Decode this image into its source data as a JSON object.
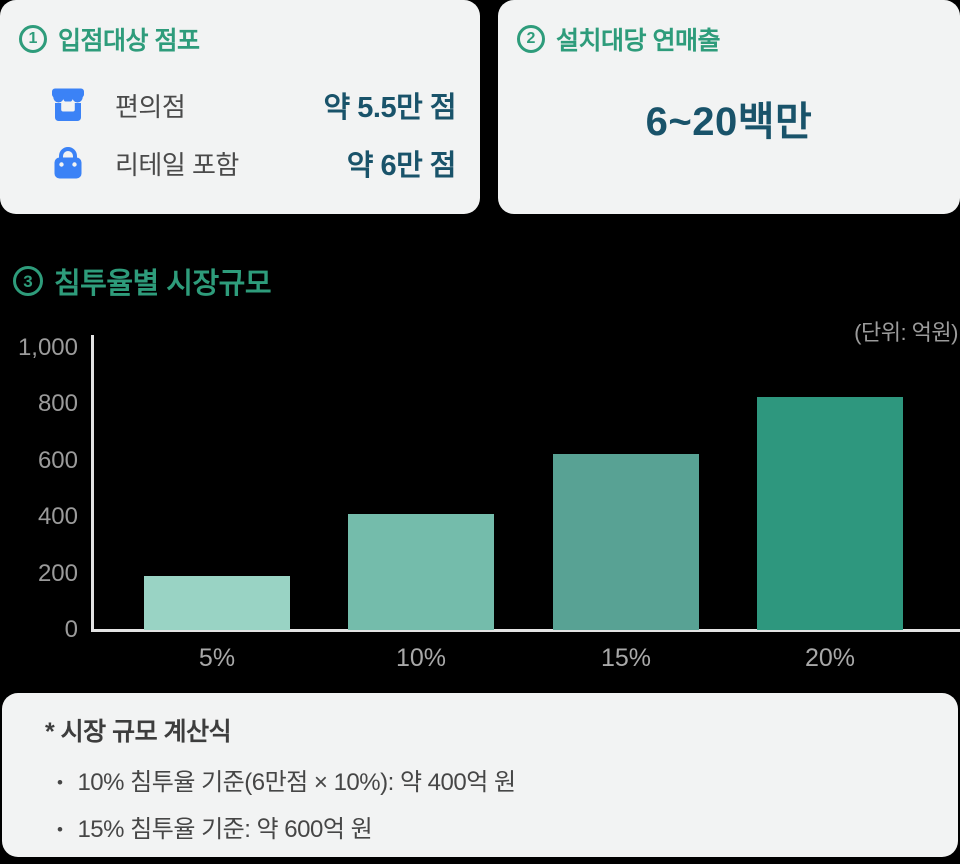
{
  "colors": {
    "page_bg": "#000000",
    "card_bg": "#F2F3F3",
    "green": "#2E9C7B",
    "dark_teal": "#19536A",
    "icon_blue": "#3B82F6",
    "label_gray": "#4A4A4A",
    "tick_gray": "#9B9B9B",
    "xlabel_gray": "#A8A8A8",
    "axis_line": "#E3E3E3",
    "footnote_title": "#3D3D3D",
    "footnote_text": "#464646"
  },
  "cards": {
    "stores": {
      "number": "1",
      "title": "입점대상 점포",
      "rows": [
        {
          "icon": "storefront-icon",
          "label": "편의점",
          "value": "약 5.5만 점"
        },
        {
          "icon": "shopping-bag-icon",
          "label": "리테일 포함",
          "value": "약 6만 점"
        }
      ]
    },
    "revenue": {
      "number": "2",
      "title": "설치대당 연매출",
      "value": "6~20백만"
    }
  },
  "chart_section": {
    "number": "3",
    "title": "침투율별 시장규모",
    "unit_label": "(단위: 억원)"
  },
  "chart_data": {
    "type": "bar",
    "title": "침투율별 시장규모",
    "unit": "억원",
    "categories": [
      "5%",
      "10%",
      "15%",
      "20%"
    ],
    "values": [
      190,
      410,
      625,
      825
    ],
    "ylim": [
      0,
      1000
    ],
    "yticks": [
      0,
      200,
      400,
      600,
      800,
      1000
    ],
    "ytick_labels": [
      "0",
      "200",
      "400",
      "600",
      "800",
      "1,000"
    ],
    "bar_colors": [
      "#99D3C4",
      "#74BCAB",
      "#58A294",
      "#2E977E"
    ],
    "grid": false,
    "legend": false,
    "annotation": "(단위: 억원)"
  },
  "footnote": {
    "bullet_char": "•",
    "title": "* 시장 규모 계산식",
    "bullets": [
      "10% 침투율 기준(6만점 × 10%): 약 400억 원",
      "15% 침투율 기준: 약 600억 원"
    ]
  }
}
